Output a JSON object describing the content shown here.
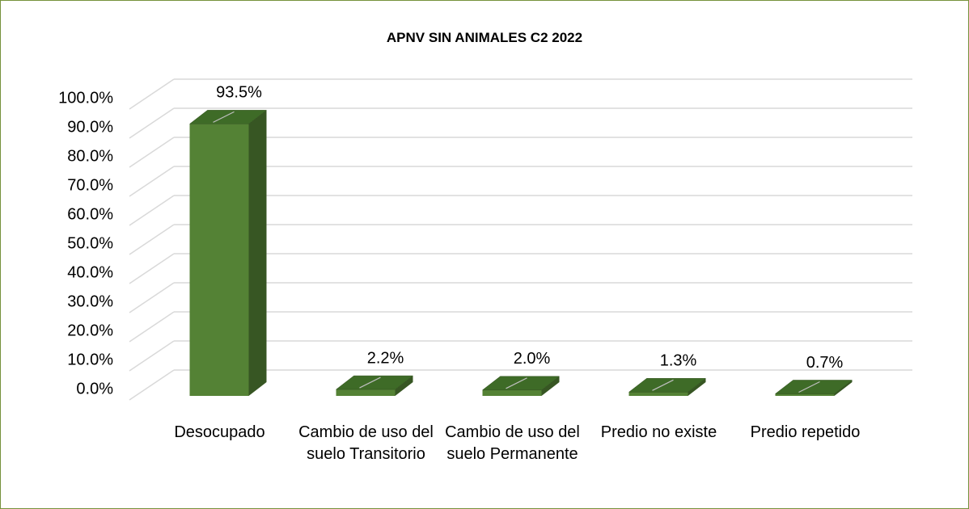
{
  "chart_data": {
    "type": "bar3d",
    "title": "APNV SIN ANIMALES C2 2022",
    "categories": [
      "Desocupado",
      "Cambio de uso del suelo Transitorio",
      "Cambio de uso del suelo Permanente",
      "Predio no existe",
      "Predio repetido"
    ],
    "values": [
      93.5,
      2.2,
      2.0,
      1.3,
      0.7
    ],
    "value_labels": [
      "93.5%",
      "2.2%",
      "2.0%",
      "1.3%",
      "0.7%"
    ],
    "color": "#548235",
    "ylim": [
      0,
      100
    ],
    "yticks": [
      {
        "value": 0,
        "label": "0.0%"
      },
      {
        "value": 10,
        "label": "10.0%"
      },
      {
        "value": 20,
        "label": "20.0%"
      },
      {
        "value": 30,
        "label": "30.0%"
      },
      {
        "value": 40,
        "label": "40.0%"
      },
      {
        "value": 50,
        "label": "50.0%"
      },
      {
        "value": 60,
        "label": "60.0%"
      },
      {
        "value": 70,
        "label": "70.0%"
      },
      {
        "value": 80,
        "label": "80.0%"
      },
      {
        "value": 90,
        "label": "90.0%"
      },
      {
        "value": 100,
        "label": "100.0%"
      }
    ],
    "grid": true
  }
}
